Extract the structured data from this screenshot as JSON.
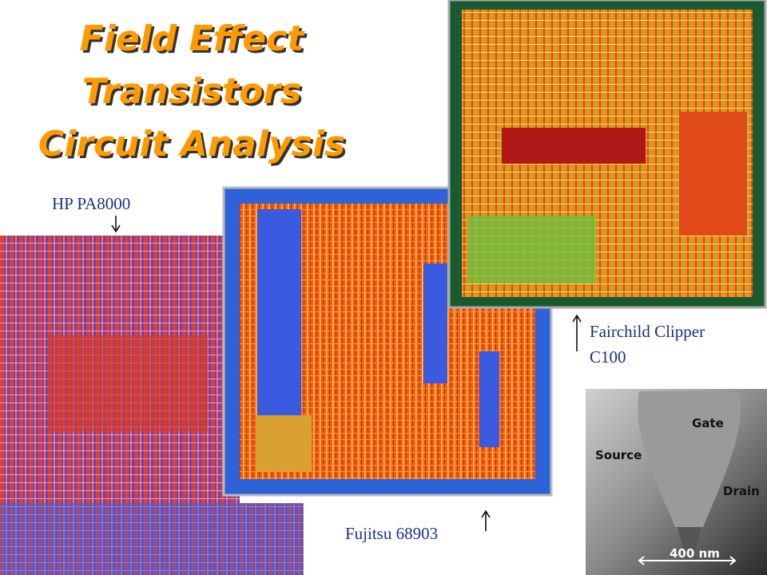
{
  "title": [
    "Field Effect",
    "Transistors",
    "Circuit Analysis"
  ],
  "captions": {
    "hp": "HP PA8000",
    "fujitsu": "Fujitsu 68903",
    "fairchild": [
      "Fairchild Clipper",
      "C100"
    ]
  },
  "sem_labels": [
    "Source",
    "Gate",
    "Drain",
    "400 nm"
  ]
}
